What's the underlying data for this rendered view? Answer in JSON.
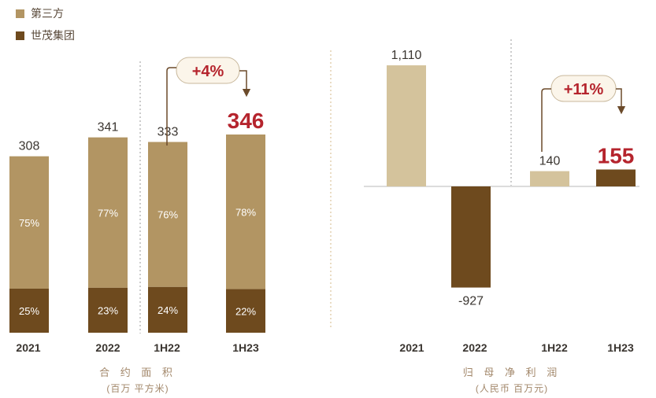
{
  "legend": [
    {
      "label": "第三方",
      "color": "#b29563"
    },
    {
      "label": "世茂集团",
      "color": "#6e4a1e"
    }
  ],
  "chart_data": [
    {
      "type": "bar",
      "stacked": true,
      "title": "合 约 面 积",
      "subtitle": "(百万  平方米)",
      "categories": [
        "2021",
        "2022",
        "1H22",
        "1H23"
      ],
      "totals": [
        308,
        341,
        333,
        346
      ],
      "total_labels": [
        "308",
        "341",
        "333",
        "346"
      ],
      "highlight_index": 3,
      "series": [
        {
          "name": "第三方",
          "pct_labels": [
            "75%",
            "77%",
            "76%",
            "78%"
          ],
          "share": [
            75,
            77,
            76,
            78
          ],
          "color": "#b29563"
        },
        {
          "name": "世茂集团",
          "pct_labels": [
            "25%",
            "23%",
            "24%",
            "22%"
          ],
          "share": [
            25,
            23,
            24,
            22
          ],
          "color": "#6e4a1e"
        }
      ],
      "growth": {
        "label": "+4%",
        "from": "1H22",
        "to": "1H23"
      },
      "ylim": [
        0,
        400
      ],
      "divider_after": "2022"
    },
    {
      "type": "bar",
      "title": "归 母 净 利 润",
      "subtitle": "(人民币 百万元)",
      "categories": [
        "2021",
        "2022",
        "1H22",
        "1H23"
      ],
      "values": [
        1110,
        -927,
        140,
        155
      ],
      "value_labels": [
        "1,110",
        "-927",
        "140",
        "155"
      ],
      "highlight_index": 3,
      "colors": [
        "#d4c39c",
        "#6e4a1e",
        "#d4c39c",
        "#6e4a1e"
      ],
      "growth": {
        "label": "+11%",
        "from": "1H22",
        "to": "1H23"
      },
      "ylim": [
        -1000,
        1200
      ],
      "divider_after": "2022"
    }
  ],
  "colors": {
    "accent_red": "#b5242d",
    "caption": "#a2876a",
    "axis_label": "#3a3530",
    "value_label": "#3a3530"
  }
}
